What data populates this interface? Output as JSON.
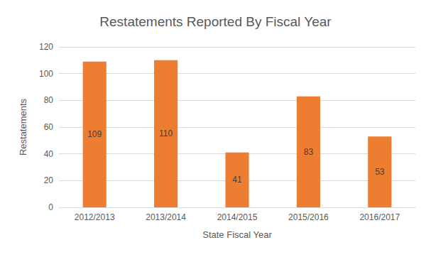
{
  "chart_data": {
    "type": "bar",
    "title": "Restatements Reported By Fiscal Year",
    "categories": [
      "2012/2013",
      "2013/2014",
      "2014/2015",
      "2015/2016",
      "2016/2017"
    ],
    "values": [
      109,
      110,
      41,
      83,
      53
    ],
    "color": "#ed7d31",
    "xlabel": "State Fiscal Year",
    "ylabel": "Restatements",
    "ylim": [
      0,
      120
    ],
    "yticks": [
      0,
      20,
      40,
      60,
      80,
      100,
      120
    ],
    "grid": true,
    "data_labels": true
  }
}
